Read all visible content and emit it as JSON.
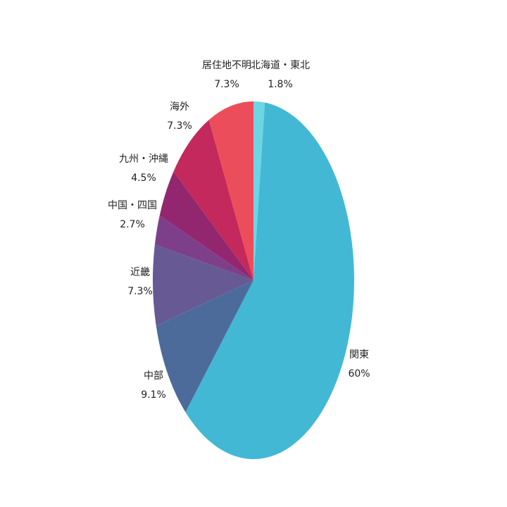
{
  "chart_data": {
    "type": "pie",
    "start": "12 o'clock",
    "direction": "clockwise",
    "legend": "none",
    "slices": [
      {
        "label": "北海道・東北",
        "value": 1.8,
        "value_label": "1.8%",
        "color": "#6dd5e3"
      },
      {
        "label": "関東",
        "value": 60,
        "value_label": "60%",
        "color": "#42b8d5"
      },
      {
        "label": "中部",
        "value": 9.1,
        "value_label": "9.1%",
        "color": "#4d6b9a"
      },
      {
        "label": "近畿",
        "value": 7.3,
        "value_label": "7.3%",
        "color": "#675a94"
      },
      {
        "label": "中国・四国",
        "value": 2.7,
        "value_label": "2.7%",
        "color": "#7e3f8a"
      },
      {
        "label": "九州・沖縄",
        "value": 4.5,
        "value_label": "4.5%",
        "color": "#93276f"
      },
      {
        "label": "海外",
        "value": 7.3,
        "value_label": "7.3%",
        "color": "#c3295c"
      },
      {
        "label": "居住地不明",
        "value": 7.3,
        "value_label": "7.3%",
        "color": "#eb4d5b"
      }
    ]
  }
}
